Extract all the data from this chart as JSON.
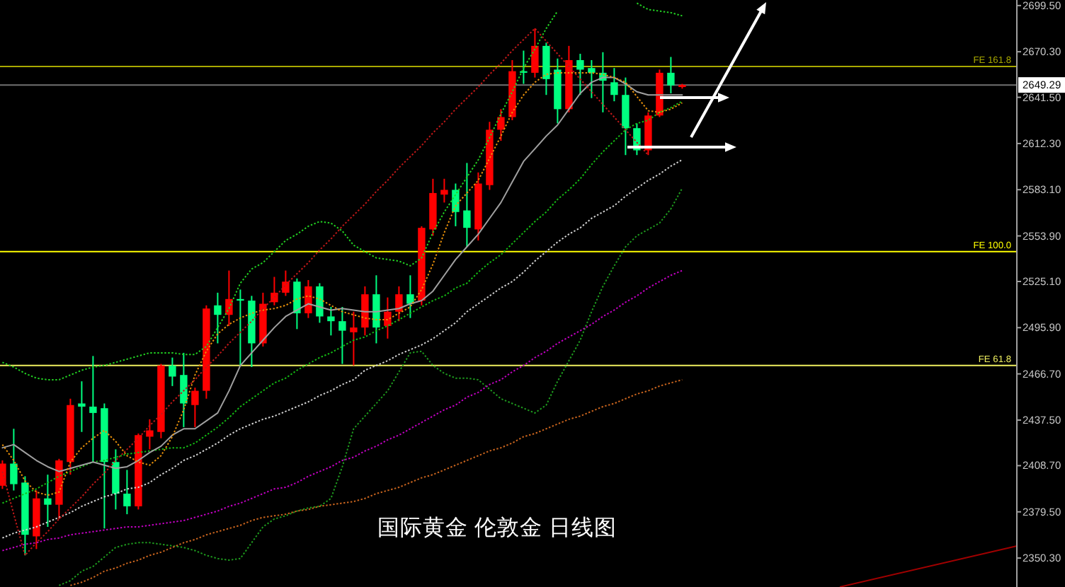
{
  "chart_data": {
    "type": "candlestick",
    "title": "国际黄金 伦敦金 日线图",
    "categories": [
      null,
      null,
      null,
      null,
      null,
      null,
      null,
      null,
      null,
      null,
      null,
      null,
      null,
      null,
      null,
      null,
      null,
      null,
      null,
      null,
      null,
      null,
      null,
      null,
      null,
      null,
      null,
      null,
      null,
      null,
      null,
      null,
      null,
      null,
      null,
      null,
      null,
      null,
      null,
      null,
      null,
      null,
      null,
      null,
      null,
      null,
      null,
      null,
      null,
      null,
      null,
      null,
      null,
      null,
      null,
      null,
      null,
      null,
      null,
      null,
      null
    ],
    "ohlc": [
      [
        2396,
        2412,
        2394,
        2410
      ],
      [
        2410,
        2432,
        2393,
        2397
      ],
      [
        2398,
        2402,
        2352,
        2365
      ],
      [
        2364,
        2393,
        2356,
        2388
      ],
      [
        2388,
        2403,
        2370,
        2384
      ],
      [
        2384,
        2413,
        2375,
        2412
      ],
      [
        2411,
        2451,
        2403,
        2447
      ],
      [
        2448,
        2462,
        2430,
        2446
      ],
      [
        2446,
        2478,
        2411,
        2442
      ],
      [
        2445,
        2448,
        2369,
        2411
      ],
      [
        2411,
        2419,
        2381,
        2391
      ],
      [
        2391,
        2406,
        2378,
        2383
      ],
      [
        2383,
        2429,
        2381,
        2428
      ],
      [
        2427,
        2438,
        2419,
        2431
      ],
      [
        2430,
        2473,
        2426,
        2472
      ],
      [
        2472,
        2477,
        2459,
        2465
      ],
      [
        2466,
        2480,
        2433,
        2448
      ],
      [
        2447,
        2458,
        2433,
        2456
      ],
      [
        2456,
        2510,
        2451,
        2508
      ],
      [
        2510,
        2518,
        2486,
        2504
      ],
      [
        2504,
        2532,
        2497,
        2514
      ],
      [
        2514,
        2520,
        2472,
        2513
      ],
      [
        2513,
        2516,
        2471,
        2486
      ],
      [
        2486,
        2518,
        2484,
        2511
      ],
      [
        2512,
        2528,
        2510,
        2518
      ],
      [
        2518,
        2532,
        2516,
        2525
      ],
      [
        2525,
        2527,
        2495,
        2505
      ],
      [
        2505,
        2526,
        2502,
        2522
      ],
      [
        2522,
        2524,
        2499,
        2503
      ],
      [
        2503,
        2509,
        2491,
        2500
      ],
      [
        2500,
        2509,
        2473,
        2494
      ],
      [
        2493,
        2506,
        2472,
        2496
      ],
      [
        2496,
        2522,
        2491,
        2517
      ],
      [
        2517,
        2529,
        2486,
        2496
      ],
      [
        2497,
        2515,
        2489,
        2506
      ],
      [
        2506,
        2522,
        2500,
        2517
      ],
      [
        2517,
        2529,
        2502,
        2511
      ],
      [
        2513,
        2560,
        2510,
        2559
      ],
      [
        2558,
        2590,
        2554,
        2581
      ],
      [
        2580,
        2590,
        2575,
        2583
      ],
      [
        2583,
        2587,
        2560,
        2569
      ],
      [
        2570,
        2600,
        2547,
        2559
      ],
      [
        2558,
        2594,
        2551,
        2587
      ],
      [
        2586,
        2626,
        2583,
        2621
      ],
      [
        2621,
        2634,
        2614,
        2629
      ],
      [
        2629,
        2665,
        2627,
        2658
      ],
      [
        2658,
        2671,
        2650,
        2657
      ],
      [
        2657,
        2685,
        2654,
        2674
      ],
      [
        2674,
        2676,
        2643,
        2653
      ],
      [
        2659,
        2666,
        2625,
        2634
      ],
      [
        2634,
        2674,
        2632,
        2665
      ],
      [
        2665,
        2669,
        2643,
        2659
      ],
      [
        2660,
        2665,
        2641,
        2657
      ],
      [
        2657,
        2670,
        2632,
        2652
      ],
      [
        2651,
        2660,
        2639,
        2643
      ],
      [
        2643,
        2654,
        2605,
        2622
      ],
      [
        2622,
        2625,
        2605,
        2608
      ],
      [
        2608,
        2632,
        2605,
        2630
      ],
      [
        2630,
        2659,
        2629,
        2657
      ],
      [
        2657,
        2667,
        2644,
        2649
      ],
      [
        2648,
        2650,
        2647,
        2649.29
      ]
    ],
    "colors": [
      "#ff0000",
      "#00ff80",
      "#00ff80",
      "#ff0000",
      "#00ff80",
      "#ff0000",
      "#ff0000",
      "#00ff80",
      "#00ff80",
      "#00ff80",
      "#00ff80",
      "#00ff80",
      "#ff0000",
      "#ff0000",
      "#ff0000",
      "#00ff80",
      "#00ff80",
      "#ff0000",
      "#ff0000",
      "#00ff80",
      "#ff0000",
      "#00ff80",
      "#00ff80",
      "#ff0000",
      "#ff0000",
      "#ff0000",
      "#00ff80",
      "#ff0000",
      "#00ff80",
      "#00ff80",
      "#00ff80",
      "#ff0000",
      "#ff0000",
      "#00ff80",
      "#ff0000",
      "#ff0000",
      "#00ff80",
      "#ff0000",
      "#ff0000",
      "#ff0000",
      "#00ff80",
      "#00ff80",
      "#ff0000",
      "#ff0000",
      "#ff0000",
      "#ff0000",
      "#00ff80",
      "#ff0000",
      "#00ff80",
      "#00ff80",
      "#ff0000",
      "#00ff80",
      "#00ff80",
      "#00ff80",
      "#00ff80",
      "#00ff80",
      "#00ff80",
      "#ff0000",
      "#ff0000",
      "#00ff80",
      "#ff0000"
    ],
    "series": [
      {
        "type": "line",
        "color": "#1e9a1e",
        "line_style": "dotted",
        "values": [
          null,
          null,
          null,
          null,
          null,
          2333,
          2336,
          2342,
          2345,
          2351,
          2357,
          2359,
          2360,
          2360,
          2359,
          2358,
          2357,
          2355,
          2352,
          2350,
          2349,
          2350,
          2360,
          2370,
          2375,
          2377,
          2380,
          2382,
          2383,
          2388,
          2408,
          2432,
          2440,
          2448,
          2456,
          2468,
          2480,
          2481,
          2472,
          2467,
          2464,
          2464,
          2463,
          2457,
          2451,
          2448,
          2445,
          2442,
          2447,
          2462,
          2475,
          2488,
          2506,
          2522,
          2535,
          2547,
          2554,
          2558,
          2562,
          2571,
          2584
        ]
      },
      {
        "type": "line",
        "color": "#14b914",
        "line_style": "dotted",
        "values": [
          2385,
          2388,
          2391,
          2394,
          2398,
          2402,
          2405,
          2408,
          2411,
          2412,
          2414,
          2416,
          2417,
          2418,
          2419,
          2420,
          2420,
          2423,
          2428,
          2433,
          2439,
          2446,
          2451,
          2456,
          2461,
          2464,
          2469,
          2473,
          2477,
          2480,
          2484,
          2488,
          2490,
          2494,
          2497,
          2501,
          2505,
          2509,
          2513,
          2516,
          2521,
          2524,
          2531,
          2537,
          2542,
          2549,
          2556,
          2563,
          2569,
          2577,
          2583,
          2590,
          2599,
          2607,
          2614,
          2621,
          2625,
          2627,
          2632,
          2635,
          2639
        ]
      },
      {
        "type": "line",
        "color": "#22d022",
        "line_style": "dotted",
        "values": [
          2474,
          2471,
          2467,
          2464,
          2463,
          2463,
          2466,
          2469,
          2471,
          2472,
          2474,
          2476,
          2478,
          2480,
          2480,
          2480,
          2479,
          2479,
          2484,
          2496,
          2508,
          2524,
          2533,
          2537,
          2544,
          2551,
          2555,
          2560,
          2563,
          2562,
          2557,
          2548,
          2544,
          2540,
          2539,
          2538,
          2535,
          2540,
          2556,
          2569,
          2580,
          2591,
          2602,
          2616,
          2631,
          2645,
          2660,
          2672,
          2685,
          2696,
          null,
          null,
          null,
          null,
          null,
          null,
          2701,
          2697,
          2696,
          2695,
          2693
        ]
      },
      {
        "type": "line",
        "color": "#c8641e",
        "line_style": "dotted",
        "values": [
          null,
          null,
          null,
          null,
          null,
          null,
          2333,
          2335,
          2338,
          2342,
          2344,
          2347,
          2349,
          2352,
          2354,
          2357,
          2360,
          2362,
          2365,
          2367,
          2369,
          2371,
          2374,
          2376,
          2377,
          2378,
          2380,
          2381,
          2383,
          2384,
          2385,
          2386,
          2388,
          2391,
          2393,
          2395,
          2398,
          2401,
          2403,
          2406,
          2409,
          2412,
          2415,
          2418,
          2420,
          2423,
          2427,
          2429,
          2432,
          2435,
          2438,
          2440,
          2443,
          2446,
          2448,
          2451,
          2454,
          2456,
          2459,
          2461,
          2463
        ]
      },
      {
        "type": "line",
        "color": "#c000c0",
        "line_style": "dotted",
        "values": [
          2355,
          2357,
          2359,
          2360,
          2362,
          2363,
          2365,
          2366,
          2367,
          2368,
          2369,
          2370,
          2370,
          2371,
          2372,
          2373,
          2374,
          2376,
          2378,
          2380,
          2383,
          2385,
          2388,
          2391,
          2394,
          2395,
          2398,
          2402,
          2405,
          2408,
          2412,
          2414,
          2418,
          2421,
          2425,
          2428,
          2432,
          2436,
          2440,
          2444,
          2447,
          2452,
          2455,
          2460,
          2463,
          2468,
          2472,
          2477,
          2481,
          2486,
          2490,
          2494,
          2498,
          2503,
          2507,
          2512,
          2516,
          2521,
          2525,
          2529,
          2532
        ]
      },
      {
        "type": "line",
        "color": "#d2d2d2",
        "line_style": "dotted",
        "values": [
          2363,
          2366,
          2368,
          2370,
          2373,
          2376,
          2379,
          2383,
          2386,
          2389,
          2391,
          2394,
          2395,
          2398,
          2403,
          2407,
          2412,
          2415,
          2419,
          2423,
          2428,
          2432,
          2435,
          2438,
          2440,
          2443,
          2446,
          2449,
          2453,
          2456,
          2460,
          2463,
          2469,
          2472,
          2475,
          2479,
          2482,
          2485,
          2489,
          2494,
          2499,
          2506,
          2511,
          2516,
          2521,
          2525,
          2531,
          2538,
          2544,
          2550,
          2555,
          2559,
          2565,
          2569,
          2573,
          2579,
          2584,
          2589,
          2593,
          2598,
          2602
        ]
      },
      {
        "type": "line",
        "color": "#a0a0a0",
        "line_style": "solid",
        "values": [
          2420,
          2422,
          2417,
          2412,
          2408,
          2405,
          2407,
          2409,
          2411,
          2409,
          2407,
          2408,
          2412,
          2417,
          2421,
          2428,
          2432,
          2432,
          2437,
          2442,
          2456,
          2472,
          2480,
          2488,
          2496,
          2503,
          2507,
          2511,
          2509,
          2507,
          2508,
          2507,
          2506,
          2506,
          2507,
          2508,
          2511,
          2513,
          2519,
          2529,
          2539,
          2547,
          2555,
          2565,
          2575,
          2588,
          2601,
          2609,
          2617,
          2624,
          2634,
          2644,
          2651,
          2654,
          2654,
          2650,
          2645,
          2643,
          2643,
          2643,
          2643
        ]
      },
      {
        "type": "line",
        "color": "#e8900a",
        "line_style": "dotted",
        "values": [
          2422,
          2412,
          2399,
          2392,
          2390,
          2392,
          2411,
          2420,
          2426,
          2431,
          2424,
          2415,
          2411,
          2409,
          2415,
          2427,
          2444,
          2466,
          2481,
          2492,
          2498,
          2502,
          2505,
          2507,
          2508,
          2510,
          2514,
          2516,
          2514,
          2510,
          2506,
          2504,
          2502,
          2501,
          2501,
          2505,
          2509,
          2520,
          2536,
          2556,
          2573,
          2581,
          2589,
          2603,
          2617,
          2632,
          2643,
          2651,
          2656,
          2657,
          2657,
          2657,
          2657,
          2656,
          2654,
          2651,
          2642,
          2633,
          2632,
          2634,
          2638
        ]
      },
      {
        "type": "line",
        "color": "#c01818",
        "line_style": "dotted",
        "values": [
          2405,
          2378,
          2352,
          2360,
          2367,
          2375,
          2382,
          2389,
          2397,
          2404,
          2412,
          2419,
          2426,
          2434,
          2441,
          2449,
          2456,
          2463,
          2471,
          2478,
          2486,
          2493,
          2500,
          2508,
          2515,
          2523,
          2530,
          2537,
          2545,
          2552,
          2560,
          2567,
          2574,
          2582,
          2589,
          2597,
          2604,
          2611,
          2619,
          2626,
          2634,
          2641,
          2648,
          2656,
          2663,
          2671,
          2678,
          2685,
          2677,
          2669,
          2661,
          2653,
          2645,
          2637,
          2629,
          2621,
          2613,
          2605,
          null,
          null,
          null
        ]
      }
    ],
    "ylim": [
      2332,
      2703
    ],
    "yticks": [
      {
        "value": 2699.5,
        "label": "2699.50"
      },
      {
        "value": 2670.3,
        "label": "2670.30"
      },
      {
        "value": 2641.5,
        "label": "2641.50"
      },
      {
        "value": 2612.3,
        "label": "2612.30"
      },
      {
        "value": 2583.1,
        "label": "2583.10"
      },
      {
        "value": 2553.9,
        "label": "2553.90"
      },
      {
        "value": 2525.1,
        "label": "2525.10"
      },
      {
        "value": 2495.9,
        "label": "2495.90"
      },
      {
        "value": 2466.7,
        "label": "2466.70"
      },
      {
        "value": 2437.5,
        "label": "2437.50"
      },
      {
        "value": 2408.7,
        "label": "2408.70"
      },
      {
        "value": 2379.5,
        "label": "2379.50"
      },
      {
        "value": 2350.3,
        "label": "2350.30"
      }
    ],
    "tick_labels": "y",
    "ref_lines": [
      {
        "axis": "y",
        "value": 2661,
        "label": "FE 161.8",
        "color": "#a8a800"
      },
      {
        "axis": "y",
        "value": 2544,
        "label": "FE 100.0",
        "color": "#ffff00"
      },
      {
        "axis": "y",
        "value": 2472,
        "label": "FE 61.8",
        "color": "#f0f060"
      },
      {
        "axis": "y",
        "value": 2649.29,
        "color": "#707070"
      }
    ],
    "annotations": [
      "2649.29"
    ]
  }
}
